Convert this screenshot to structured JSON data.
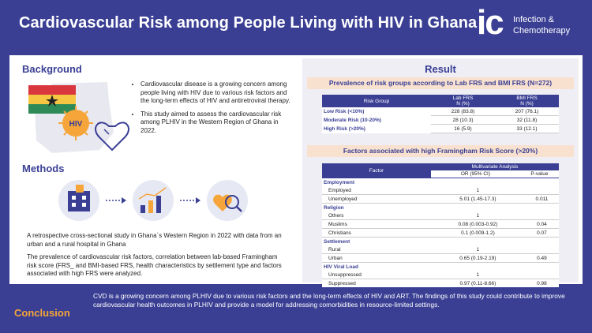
{
  "header": {
    "title": "Cardiovascular Risk among People Living with HIV in Ghana",
    "logo": {
      "mark": "ic",
      "line1": "Infection &",
      "line2": "Chemotherapy"
    }
  },
  "background": {
    "heading": "Background",
    "hiv_label": "HIV",
    "bullets": [
      "Cardiovascular disease is a growing concern among people living with HIV due to various risk factors and the long-term effects of HIV and antiretroviral therapy.",
      "This study aimed to assess the cardiovascular risk among PLHIV in the Western Region of Ghana in 2022."
    ]
  },
  "methods": {
    "heading": "Methods",
    "p1": "A retrospective cross-sectional study in Ghana`s Western Region in 2022 with data from an urban and a rural hospital in Ghana",
    "p2": "The prevalence of cardiovascular risk factors, correlation between lab-based Framingham risk score (FRS_ and BMI-based FRS, health characteristics by settlement type and factors associated with high FRS  were analyzed."
  },
  "result": {
    "heading": "Result",
    "prev_title": "Prevalence of risk groups according to Lab FRS and BMI FRS (N=272)",
    "prev_headers": [
      "Risk Group",
      "Lab FRS\nN (%)",
      "BMI FRS\nN (%)"
    ],
    "prev_rows": [
      [
        "Low Risk (<10%)",
        "228 (83.8)",
        "207 (76.1)"
      ],
      [
        "Moderate Risk (10-20%)",
        "28 (10.3)",
        "32 (11.8)"
      ],
      [
        "High Risk (>20%)",
        "16 (5.9)",
        "33 (12.1)"
      ]
    ],
    "factor_title": "Factors associated with  high Framingham Risk Score (>20%)",
    "factor_headers": {
      "factor": "Factor",
      "mva": "Multivariate Analysis",
      "or": "OR (95% CI)",
      "p": "P-value"
    },
    "groups": [
      {
        "name": "Employment",
        "rows": [
          [
            "Employed",
            "1",
            ""
          ],
          [
            "Unemployed",
            "5.01 (1.45-17.3)",
            "0.011"
          ]
        ]
      },
      {
        "name": "Religion",
        "rows": [
          [
            "Others",
            "1",
            ""
          ],
          [
            "Muslims",
            "0.08 (0.003-0.92)",
            "0.04"
          ],
          [
            "Christians",
            "0.1 (0.009-1.2)",
            "0.07"
          ]
        ]
      },
      {
        "name": "Settlement",
        "rows": [
          [
            "Rural",
            "1",
            ""
          ],
          [
            "Urban",
            "0.65 (0.19-2.19)",
            "0.49"
          ]
        ]
      },
      {
        "name": "HIV Viral Load",
        "rows": [
          [
            "Unsuppressed",
            "1",
            ""
          ],
          [
            "Suppressed",
            "0.97 (0.11-8.66)",
            "0.98"
          ]
        ]
      }
    ]
  },
  "conclusion": {
    "heading": "Conclusion",
    "text": "CVD is a growing concern among PLHIV due to various risk factors and the long-term effects of HIV and ART. The findings of this study could contribute to improve cardiovascular health outcomes in PLHIV and provide a model for addressing comorbidities in resource-limited settings."
  },
  "colors": {
    "navy": "#3a3f94",
    "orange": "#f5a53a",
    "peach": "#f8e1cf"
  }
}
